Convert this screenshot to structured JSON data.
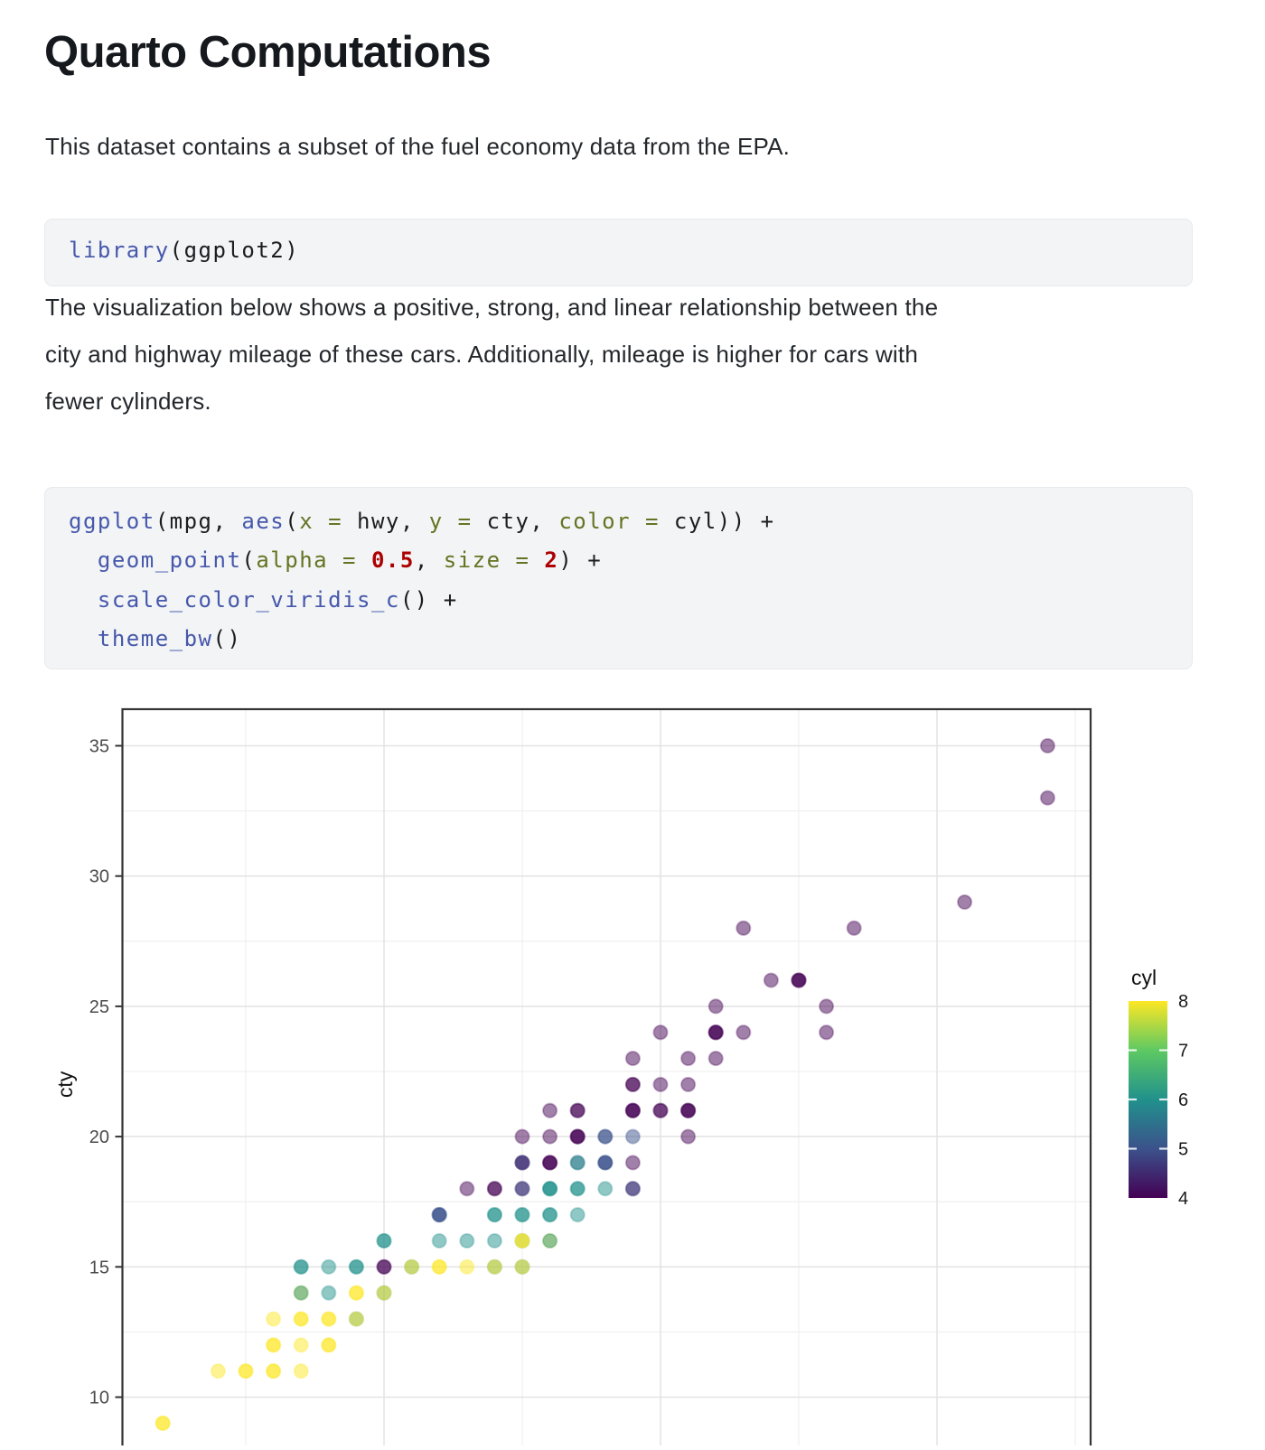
{
  "doc": {
    "title": "Quarto Computations",
    "intro": "This dataset contains a subset of the fuel economy data from the EPA.",
    "body_lines": [
      "The visualization below shows a positive, strong, and linear relationship between the",
      "city and highway mileage of these cars. Additionally, mileage is higher for cars with",
      "fewer cylinders."
    ]
  },
  "syntax_colors": {
    "fu": "#4758AB",
    "ot": "#657422",
    "dv": "#AD0000",
    "pl": "#1c1d21"
  },
  "code_blocks": {
    "library": {
      "lines": [
        [
          {
            "t": "library",
            "c": "fu"
          },
          {
            "t": "(ggplot2)",
            "c": "pl"
          }
        ]
      ]
    },
    "ggplot": {
      "lines": [
        [
          {
            "t": "ggplot",
            "c": "fu"
          },
          {
            "t": "(mpg, ",
            "c": "pl"
          },
          {
            "t": "aes",
            "c": "fu"
          },
          {
            "t": "(",
            "c": "pl"
          },
          {
            "t": "x = ",
            "c": "ot"
          },
          {
            "t": "hwy, ",
            "c": "pl"
          },
          {
            "t": "y = ",
            "c": "ot"
          },
          {
            "t": "cty, ",
            "c": "pl"
          },
          {
            "t": "color = ",
            "c": "ot"
          },
          {
            "t": "cyl)) ",
            "c": "pl"
          },
          {
            "t": "+",
            "c": "pl"
          }
        ],
        [
          {
            "t": "  ",
            "c": "pl"
          },
          {
            "t": "geom_point",
            "c": "fu"
          },
          {
            "t": "(",
            "c": "pl"
          },
          {
            "t": "alpha = ",
            "c": "ot"
          },
          {
            "t": "0.5",
            "c": "dv"
          },
          {
            "t": ", ",
            "c": "pl"
          },
          {
            "t": "size = ",
            "c": "ot"
          },
          {
            "t": "2",
            "c": "dv"
          },
          {
            "t": ") ",
            "c": "pl"
          },
          {
            "t": "+",
            "c": "pl"
          }
        ],
        [
          {
            "t": "  ",
            "c": "pl"
          },
          {
            "t": "scale_color_viridis_c",
            "c": "fu"
          },
          {
            "t": "() ",
            "c": "pl"
          },
          {
            "t": "+",
            "c": "pl"
          }
        ],
        [
          {
            "t": "  ",
            "c": "pl"
          },
          {
            "t": "theme_bw",
            "c": "fu"
          },
          {
            "t": "()",
            "c": "pl"
          }
        ]
      ]
    }
  },
  "chart_data": {
    "type": "scatter",
    "x": "hwy",
    "ylabel": "cty",
    "alpha": 0.5,
    "point_size": 2,
    "xlim": [
      10.45,
      45.55
    ],
    "x_gridlines": [
      15,
      20,
      25,
      30,
      35,
      40,
      45
    ],
    "x_major": [
      20,
      30,
      40
    ],
    "y_ticks": [
      35,
      30,
      25,
      20,
      15,
      10
    ],
    "y_minor": [
      32.5,
      27.5,
      22.5,
      17.5,
      12.5
    ],
    "legend": {
      "title": "cyl",
      "ticks": [
        8,
        7,
        6,
        5,
        4
      ],
      "min": 4,
      "max": 8
    },
    "viridis": {
      "4": "#440154",
      "5": "#3b528b",
      "6": "#21918c",
      "7": "#5ec962",
      "8": "#fde725"
    },
    "points": [
      [
        12,
        9,
        8
      ],
      [
        12,
        9,
        8
      ],
      [
        14,
        11,
        8
      ],
      [
        15,
        11,
        8
      ],
      [
        15,
        11,
        8
      ],
      [
        16,
        11,
        8
      ],
      [
        16,
        11,
        8
      ],
      [
        17,
        11,
        8
      ],
      [
        16,
        12,
        8
      ],
      [
        16,
        12,
        8
      ],
      [
        17,
        12,
        8
      ],
      [
        18,
        12,
        8
      ],
      [
        18,
        12,
        8
      ],
      [
        16,
        13,
        8
      ],
      [
        17,
        13,
        8
      ],
      [
        17,
        13,
        8
      ],
      [
        18,
        13,
        8
      ],
      [
        18,
        13,
        8
      ],
      [
        19,
        13,
        6
      ],
      [
        19,
        13,
        8
      ],
      [
        17,
        14,
        8
      ],
      [
        17,
        14,
        6
      ],
      [
        18,
        14,
        6
      ],
      [
        19,
        14,
        8
      ],
      [
        19,
        14,
        8
      ],
      [
        20,
        14,
        6
      ],
      [
        20,
        14,
        8
      ],
      [
        17,
        15,
        6
      ],
      [
        17,
        15,
        6
      ],
      [
        18,
        15,
        6
      ],
      [
        19,
        15,
        6
      ],
      [
        19,
        15,
        6
      ],
      [
        20,
        15,
        4
      ],
      [
        20,
        15,
        4
      ],
      [
        21,
        15,
        6
      ],
      [
        21,
        15,
        8
      ],
      [
        22,
        15,
        8
      ],
      [
        22,
        15,
        8
      ],
      [
        23,
        15,
        8
      ],
      [
        24,
        15,
        6
      ],
      [
        24,
        15,
        8
      ],
      [
        25,
        15,
        6
      ],
      [
        25,
        15,
        8
      ],
      [
        20,
        16,
        6
      ],
      [
        20,
        16,
        6
      ],
      [
        22,
        16,
        6
      ],
      [
        23,
        16,
        6
      ],
      [
        24,
        16,
        6
      ],
      [
        25,
        16,
        6
      ],
      [
        25,
        16,
        8
      ],
      [
        25,
        16,
        8
      ],
      [
        26,
        16,
        8
      ],
      [
        26,
        16,
        6
      ],
      [
        22,
        17,
        5
      ],
      [
        22,
        17,
        5
      ],
      [
        22,
        17,
        5
      ],
      [
        24,
        17,
        6
      ],
      [
        24,
        17,
        6
      ],
      [
        25,
        17,
        6
      ],
      [
        25,
        17,
        6
      ],
      [
        26,
        17,
        6
      ],
      [
        26,
        17,
        6
      ],
      [
        27,
        17,
        6
      ],
      [
        23,
        18,
        4
      ],
      [
        24,
        18,
        4
      ],
      [
        24,
        18,
        4
      ],
      [
        25,
        18,
        4
      ],
      [
        25,
        18,
        5
      ],
      [
        26,
        18,
        6
      ],
      [
        26,
        18,
        6
      ],
      [
        26,
        18,
        6
      ],
      [
        27,
        18,
        6
      ],
      [
        27,
        18,
        6
      ],
      [
        28,
        18,
        6
      ],
      [
        29,
        18,
        4
      ],
      [
        29,
        18,
        5
      ],
      [
        25,
        19,
        4
      ],
      [
        25,
        19,
        4
      ],
      [
        25,
        19,
        5
      ],
      [
        26,
        19,
        4
      ],
      [
        26,
        19,
        4
      ],
      [
        26,
        19,
        4
      ],
      [
        27,
        19,
        5
      ],
      [
        27,
        19,
        6
      ],
      [
        28,
        19,
        5
      ],
      [
        28,
        19,
        5
      ],
      [
        28,
        19,
        5
      ],
      [
        29,
        19,
        4
      ],
      [
        25,
        20,
        4
      ],
      [
        26,
        20,
        4
      ],
      [
        27,
        20,
        4
      ],
      [
        27,
        20,
        4
      ],
      [
        27,
        20,
        4
      ],
      [
        28,
        20,
        5
      ],
      [
        28,
        20,
        5
      ],
      [
        29,
        20,
        5
      ],
      [
        31,
        20,
        4
      ],
      [
        26,
        21,
        4
      ],
      [
        27,
        21,
        4
      ],
      [
        27,
        21,
        4
      ],
      [
        29,
        21,
        4
      ],
      [
        29,
        21,
        4
      ],
      [
        29,
        21,
        4
      ],
      [
        30,
        21,
        4
      ],
      [
        30,
        21,
        4
      ],
      [
        31,
        21,
        4
      ],
      [
        31,
        21,
        4
      ],
      [
        31,
        21,
        4
      ],
      [
        29,
        22,
        4
      ],
      [
        29,
        22,
        4
      ],
      [
        30,
        22,
        4
      ],
      [
        31,
        22,
        4
      ],
      [
        29,
        23,
        4
      ],
      [
        31,
        23,
        4
      ],
      [
        32,
        23,
        4
      ],
      [
        30,
        24,
        4
      ],
      [
        32,
        24,
        4
      ],
      [
        32,
        24,
        4
      ],
      [
        32,
        24,
        4
      ],
      [
        33,
        24,
        4
      ],
      [
        36,
        24,
        4
      ],
      [
        32,
        25,
        4
      ],
      [
        36,
        25,
        4
      ],
      [
        34,
        26,
        4
      ],
      [
        35,
        26,
        4
      ],
      [
        35,
        26,
        4
      ],
      [
        35,
        26,
        4
      ],
      [
        33,
        28,
        4
      ],
      [
        37,
        28,
        4
      ],
      [
        41,
        29,
        4
      ],
      [
        44,
        33,
        4
      ],
      [
        44,
        35,
        4
      ]
    ]
  }
}
